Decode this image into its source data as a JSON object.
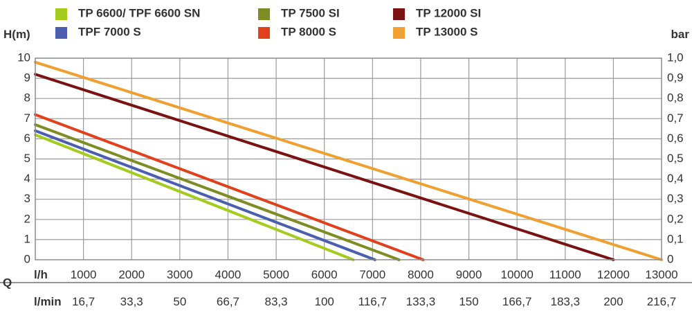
{
  "chart_data": {
    "type": "line",
    "ylabel_left": "H(m)",
    "ylabel_right": "bar",
    "q_label": "Q",
    "row1_unit": "l/h",
    "row2_unit": "l/min",
    "xlim": [
      0,
      13000
    ],
    "ylim": [
      0,
      10
    ],
    "grid": true,
    "legend_position": "top",
    "y_ticks_left": [
      "0",
      "1",
      "2",
      "3",
      "4",
      "5",
      "6",
      "7",
      "8",
      "9",
      "10"
    ],
    "y_ticks_right": [
      "0",
      "0,1",
      "0,2",
      "0,3",
      "0,4",
      "0,5",
      "0,6",
      "0,7",
      "0,8",
      "0,9",
      "1,0"
    ],
    "x_ticks_lh": [
      1000,
      2000,
      3000,
      4000,
      5000,
      6000,
      7000,
      8000,
      9000,
      10000,
      11000,
      12000,
      13000
    ],
    "x_ticks_lmin": [
      "16,7",
      "33,3",
      "50",
      "66,7",
      "83,3",
      "100",
      "116,7",
      "133,3",
      "150",
      "166,7",
      "183,3",
      "200",
      "216,7"
    ],
    "series": [
      {
        "name": "TP 6600/ TPF 6600 SN",
        "color": "#a3cc1f",
        "points": [
          [
            0,
            6.2
          ],
          [
            6600,
            0
          ]
        ]
      },
      {
        "name": "TPF 7000 S",
        "color": "#4a5fb0",
        "points": [
          [
            0,
            6.4
          ],
          [
            7050,
            0
          ]
        ]
      },
      {
        "name": "TP 7500 SI",
        "color": "#7f8b23",
        "points": [
          [
            0,
            6.7
          ],
          [
            7550,
            0
          ]
        ]
      },
      {
        "name": "TP 8000 S",
        "color": "#e2401c",
        "points": [
          [
            0,
            7.2
          ],
          [
            8050,
            0
          ]
        ]
      },
      {
        "name": "TP 12000 SI",
        "color": "#7a1212",
        "points": [
          [
            0,
            9.2
          ],
          [
            12000,
            0
          ]
        ]
      },
      {
        "name": "TP 13000 S",
        "color": "#f0a030",
        "points": [
          [
            0,
            9.8
          ],
          [
            13000,
            0
          ]
        ]
      }
    ]
  }
}
